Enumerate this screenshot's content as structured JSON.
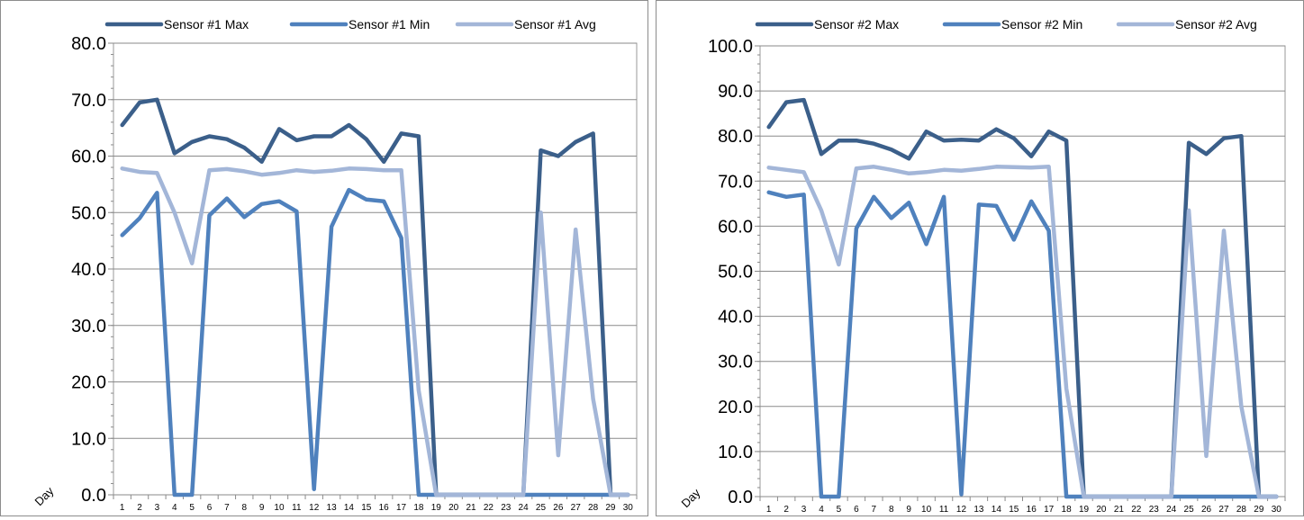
{
  "chart_data": [
    {
      "type": "line",
      "xlabel": "Day",
      "ylim": [
        0,
        80
      ],
      "ytick_step": 10,
      "ytick_labels": [
        "0.0",
        "10.0",
        "20.0",
        "30.0",
        "40.0",
        "50.0",
        "60.0",
        "70.0",
        "80.0"
      ],
      "categories": [
        "1",
        "2",
        "3",
        "4",
        "5",
        "6",
        "7",
        "8",
        "9",
        "10",
        "11",
        "12",
        "13",
        "14",
        "15",
        "16",
        "17",
        "18",
        "19",
        "20",
        "21",
        "22",
        "23",
        "24",
        "25",
        "26",
        "27",
        "28",
        "29",
        "30"
      ],
      "grid": true,
      "legend_position": "top",
      "series": [
        {
          "name": "Sensor #1 Max",
          "color": "#3b5f8a",
          "values": [
            65.5,
            69.5,
            70,
            60.5,
            62.5,
            63.5,
            63,
            61.5,
            59,
            64.8,
            62.8,
            63.5,
            63.5,
            65.5,
            63,
            59,
            64,
            63.5,
            0,
            0,
            0,
            0,
            0,
            0,
            61,
            60,
            62.5,
            64,
            0,
            0
          ]
        },
        {
          "name": "Sensor #1 Min",
          "color": "#4f81bd",
          "values": [
            46,
            49,
            53.5,
            0,
            0,
            49.5,
            52.5,
            49.2,
            51.5,
            52,
            50.2,
            1,
            47.5,
            54,
            52.3,
            52,
            45.5,
            0,
            0,
            0,
            0,
            0,
            0,
            0,
            0,
            0,
            0,
            0,
            0,
            0
          ]
        },
        {
          "name": "Sensor #1 Avg",
          "color": "#a3b6d8",
          "values": [
            57.8,
            57.2,
            57,
            50,
            41,
            57.5,
            57.7,
            57.3,
            56.7,
            57,
            57.5,
            57.2,
            57.4,
            57.8,
            57.7,
            57.5,
            57.5,
            18.5,
            0,
            0,
            0,
            0,
            0,
            0,
            50,
            7,
            47,
            17,
            0,
            0
          ]
        }
      ]
    },
    {
      "type": "line",
      "xlabel": "Day",
      "ylim": [
        0,
        100
      ],
      "ytick_step": 10,
      "ytick_labels": [
        "0.0",
        "10.0",
        "20.0",
        "30.0",
        "40.0",
        "50.0",
        "60.0",
        "70.0",
        "80.0",
        "90.0",
        "100.0"
      ],
      "categories": [
        "1",
        "2",
        "3",
        "4",
        "5",
        "6",
        "7",
        "8",
        "9",
        "10",
        "11",
        "12",
        "13",
        "14",
        "15",
        "16",
        "17",
        "18",
        "19",
        "20",
        "21",
        "22",
        "23",
        "24",
        "25",
        "26",
        "27",
        "28",
        "29",
        "30"
      ],
      "grid": true,
      "legend_position": "top",
      "series": [
        {
          "name": "Sensor #2 Max",
          "color": "#3b5f8a",
          "values": [
            82,
            87.5,
            88,
            76,
            79,
            79,
            78.3,
            77,
            75,
            81,
            79,
            79.2,
            79,
            81.5,
            79.5,
            75.5,
            81,
            79,
            0,
            0,
            0,
            0,
            0,
            0,
            78.5,
            76,
            79.5,
            80,
            0,
            0
          ]
        },
        {
          "name": "Sensor #2 Min",
          "color": "#4f81bd",
          "values": [
            67.5,
            66.5,
            67,
            0,
            0,
            59.5,
            66.5,
            61.8,
            65.2,
            56,
            66.5,
            0.5,
            64.8,
            64.5,
            57,
            65.5,
            59,
            0,
            0,
            0,
            0,
            0,
            0,
            0,
            0,
            0,
            0,
            0,
            0,
            0
          ]
        },
        {
          "name": "Sensor #2 Avg",
          "color": "#a3b6d8",
          "values": [
            73,
            72.5,
            72,
            63.5,
            51.5,
            72.8,
            73.2,
            72.5,
            71.7,
            72,
            72.5,
            72.3,
            72.7,
            73.2,
            73.1,
            73,
            73.2,
            24,
            0,
            0,
            0,
            0,
            0,
            0,
            63.5,
            9,
            59,
            20,
            0,
            0
          ]
        }
      ]
    }
  ]
}
